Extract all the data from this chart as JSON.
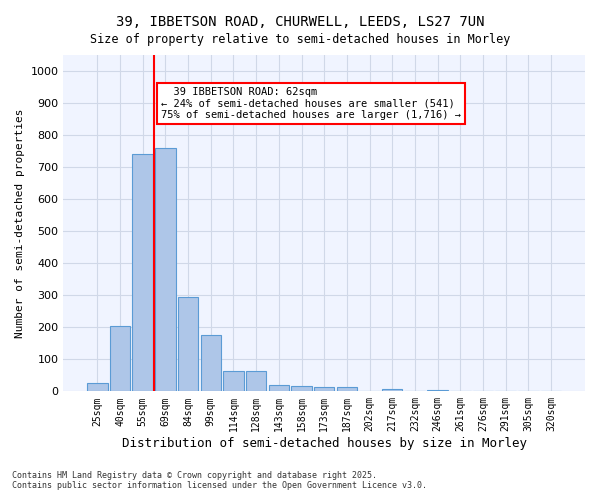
{
  "title_line1": "39, IBBETSON ROAD, CHURWELL, LEEDS, LS27 7UN",
  "title_line2": "Size of property relative to semi-detached houses in Morley",
  "xlabel": "Distribution of semi-detached houses by size in Morley",
  "ylabel": "Number of semi-detached properties",
  "categories": [
    "25sqm",
    "40sqm",
    "55sqm",
    "69sqm",
    "84sqm",
    "99sqm",
    "114sqm",
    "128sqm",
    "143sqm",
    "158sqm",
    "173sqm",
    "187sqm",
    "202sqm",
    "217sqm",
    "232sqm",
    "246sqm",
    "261sqm",
    "276sqm",
    "291sqm",
    "305sqm",
    "320sqm"
  ],
  "values": [
    25,
    205,
    740,
    760,
    293,
    177,
    65,
    65,
    20,
    17,
    12,
    12,
    0,
    8,
    0,
    5,
    0,
    0,
    0,
    0,
    0
  ],
  "bar_color": "#aec6e8",
  "bar_edge_color": "#5b9bd5",
  "property_value": 62,
  "property_label": "39 IBBETSON ROAD: 62sqm",
  "pct_smaller": 24,
  "count_smaller": 541,
  "pct_larger": 75,
  "count_larger": 1716,
  "vline_x_index": 2.0,
  "ylim": [
    0,
    1050
  ],
  "yticks": [
    0,
    100,
    200,
    300,
    400,
    500,
    600,
    700,
    800,
    900,
    1000
  ],
  "grid_color": "#d0d8e8",
  "background_color": "#f0f4ff",
  "footnote_line1": "Contains HM Land Registry data © Crown copyright and database right 2025.",
  "footnote_line2": "Contains public sector information licensed under the Open Government Licence v3.0."
}
